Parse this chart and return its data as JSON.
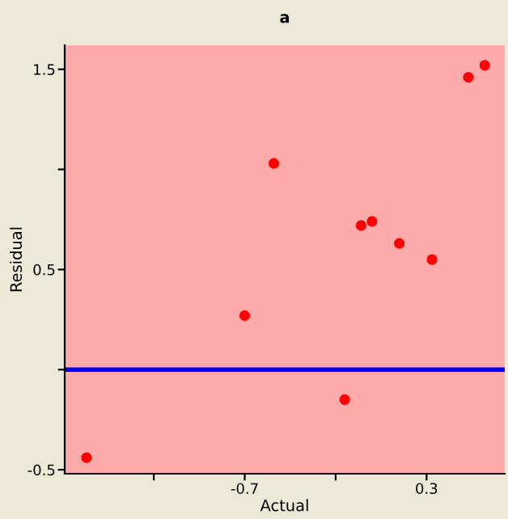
{
  "chart_data": {
    "type": "scatter",
    "title": "a",
    "xlabel": "Actual",
    "ylabel": "Residual",
    "x": [
      -1.57,
      -0.7,
      -0.54,
      -0.15,
      -0.06,
      0.0,
      0.15,
      0.33,
      0.53,
      0.62
    ],
    "series": [
      {
        "color": "#ff0000",
        "values": [
          -0.44,
          0.27,
          1.03,
          -0.15,
          0.72,
          0.74,
          0.63,
          0.55,
          1.46,
          1.52
        ]
      }
    ],
    "xlim": [
      -1.69,
      0.73
    ],
    "ylim": [
      -0.52,
      1.62
    ],
    "xticks": [
      {
        "value": -1.2,
        "label": null
      },
      -0.7,
      {
        "value": -0.2,
        "label": null
      },
      0.3
    ],
    "yticks": [
      -0.5,
      {
        "value": 0,
        "label": null
      },
      0.5,
      {
        "value": 1,
        "label": null
      },
      1.5
    ],
    "ref_lines": [
      {
        "axis": "y",
        "value": 0,
        "color": "#0000ff"
      }
    ],
    "grid": false,
    "marker": "circle",
    "legend": false
  }
}
